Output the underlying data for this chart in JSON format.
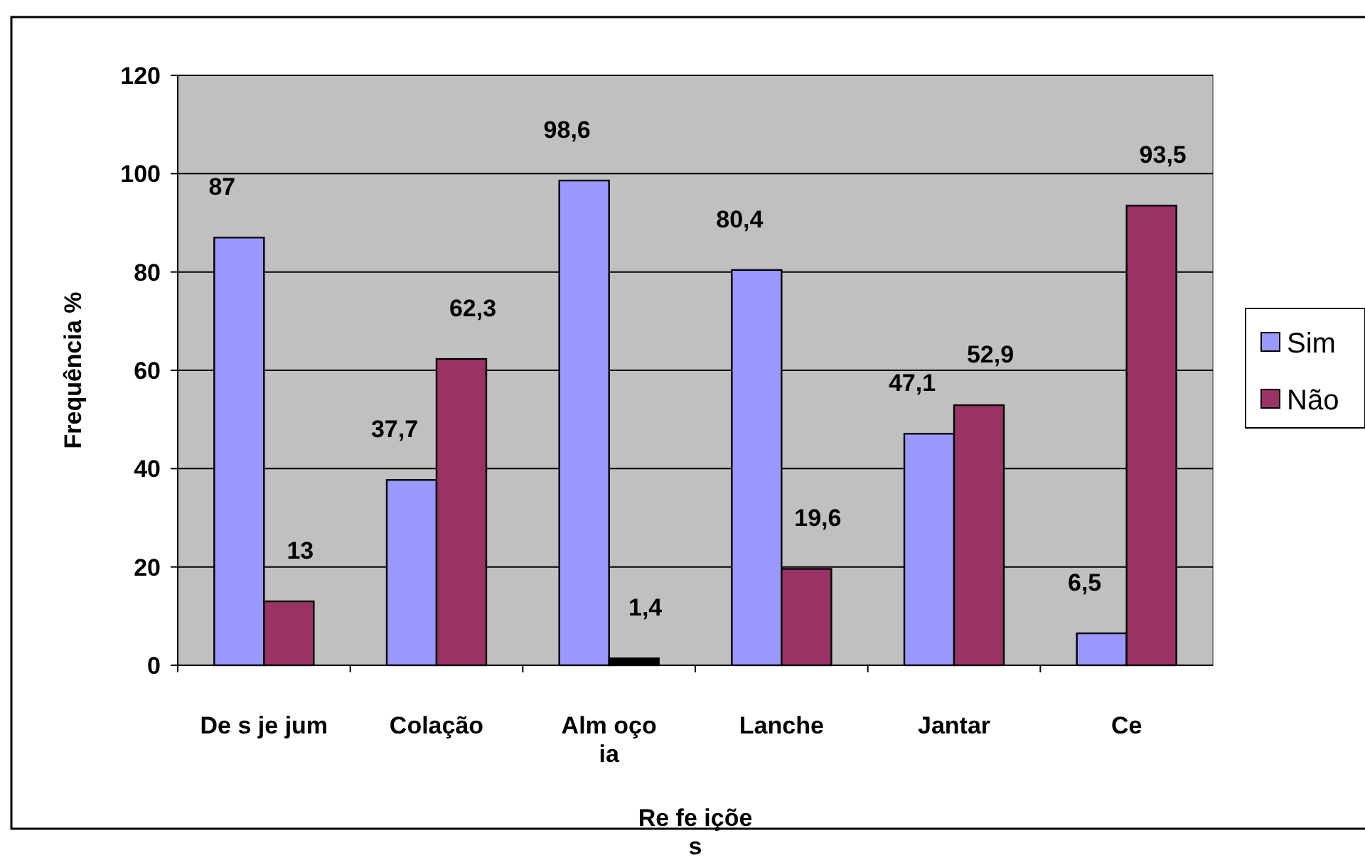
{
  "chart_data": {
    "type": "bar",
    "categories": [
      "De s je jum",
      "Colação",
      "Alm oço\nia",
      "Lanche",
      "Jantar",
      "Ce"
    ],
    "xlabel": "Re fe içõe\ns",
    "ylabel": "Frequência %",
    "series": [
      {
        "name": "Sim",
        "color": "#9999ff",
        "values": [
          87,
          37.7,
          98.6,
          80.4,
          47.1,
          6.5
        ],
        "value_labels": [
          "87",
          "37,7",
          "98,6",
          "80,4",
          "47,1",
          "6,5"
        ]
      },
      {
        "name": "Não",
        "color": "#993366",
        "colors": [
          "#993366",
          "#993366",
          "#000000",
          "#993366",
          "#993366",
          "#993366"
        ],
        "values": [
          13,
          62.3,
          1.4,
          19.6,
          52.9,
          93.5
        ],
        "value_labels": [
          "13",
          "62,3",
          "1,4",
          "19,6",
          "52,9",
          "93,5"
        ]
      }
    ],
    "ylim": [
      0,
      120
    ],
    "yticks": [
      0,
      20,
      40,
      60,
      80,
      100,
      120
    ],
    "grid": "y",
    "legend": "right"
  }
}
